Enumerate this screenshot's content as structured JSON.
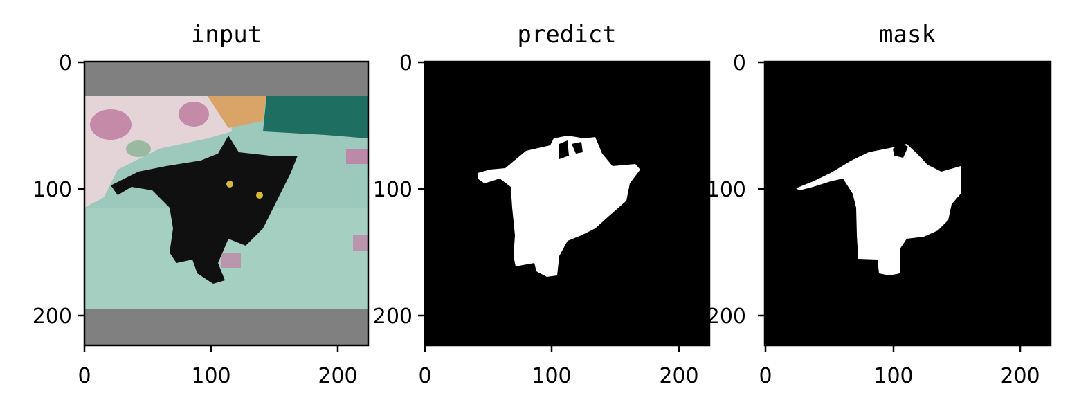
{
  "chart_data": [
    {
      "type": "image",
      "title": "input",
      "xlim": [
        0,
        224
      ],
      "ylim": [
        224,
        0
      ],
      "xticks": [
        0,
        100,
        200
      ],
      "yticks": [
        0,
        100,
        200
      ],
      "image_content": "photo of a black cat lying on a mint green bedspread, letterboxed with gray bars top and bottom",
      "letterbox_color": "#808080",
      "letterbox_rows": [
        [
          0,
          27
        ],
        [
          195,
          224
        ]
      ]
    },
    {
      "type": "image",
      "title": "predict",
      "xlim": [
        0,
        224
      ],
      "ylim": [
        224,
        0
      ],
      "xticks": [
        0,
        100,
        200
      ],
      "yticks": [
        0,
        100,
        200
      ],
      "image_content": "binary segmentation mask, white cat silhouette on black background"
    },
    {
      "type": "image",
      "title": "mask",
      "xlim": [
        0,
        224
      ],
      "ylim": [
        224,
        0
      ],
      "xticks": [
        0,
        100,
        200
      ],
      "yticks": [
        0,
        100,
        200
      ],
      "image_content": "binary ground-truth mask, white cat silhouette on black background"
    }
  ],
  "colors": {
    "background": "#ffffff",
    "mask_foreground": "#ffffff",
    "mask_background": "#000000",
    "letterbox": "#808080",
    "bedspread": "#9cc9bb",
    "pillow": "#e4d4d8",
    "blanket": "#1f6e62",
    "cat": "#101010",
    "cat_eyes": "#d8b838"
  }
}
